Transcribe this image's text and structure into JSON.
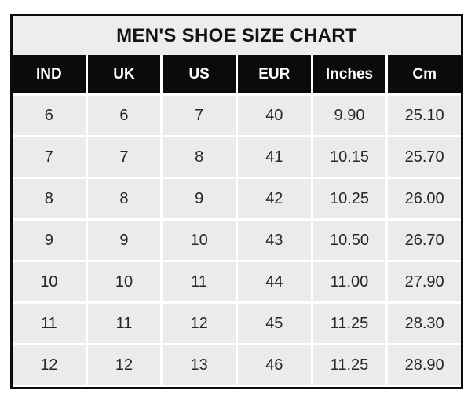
{
  "title": "MEN'S SHOE SIZE CHART",
  "colors": {
    "border_and_header_bg": "#0b0b0b",
    "title_bg": "#ededed",
    "cell_bg": "#ebebeb",
    "header_text": "#ffffff",
    "cell_text": "#262626",
    "page_bg": "#ffffff"
  },
  "chart_data": {
    "type": "table",
    "title": "MEN'S SHOE SIZE CHART",
    "columns": [
      "IND",
      "UK",
      "US",
      "EUR",
      "Inches",
      "Cm"
    ],
    "rows": [
      [
        "6",
        "6",
        "7",
        "40",
        "9.90",
        "25.10"
      ],
      [
        "7",
        "7",
        "8",
        "41",
        "10.15",
        "25.70"
      ],
      [
        "8",
        "8",
        "9",
        "42",
        "10.25",
        "26.00"
      ],
      [
        "9",
        "9",
        "10",
        "43",
        "10.50",
        "26.70"
      ],
      [
        "10",
        "10",
        "11",
        "44",
        "11.00",
        "27.90"
      ],
      [
        "11",
        "11",
        "12",
        "45",
        "11.25",
        "28.30"
      ],
      [
        "12",
        "12",
        "13",
        "46",
        "11.25",
        "28.90"
      ]
    ]
  }
}
